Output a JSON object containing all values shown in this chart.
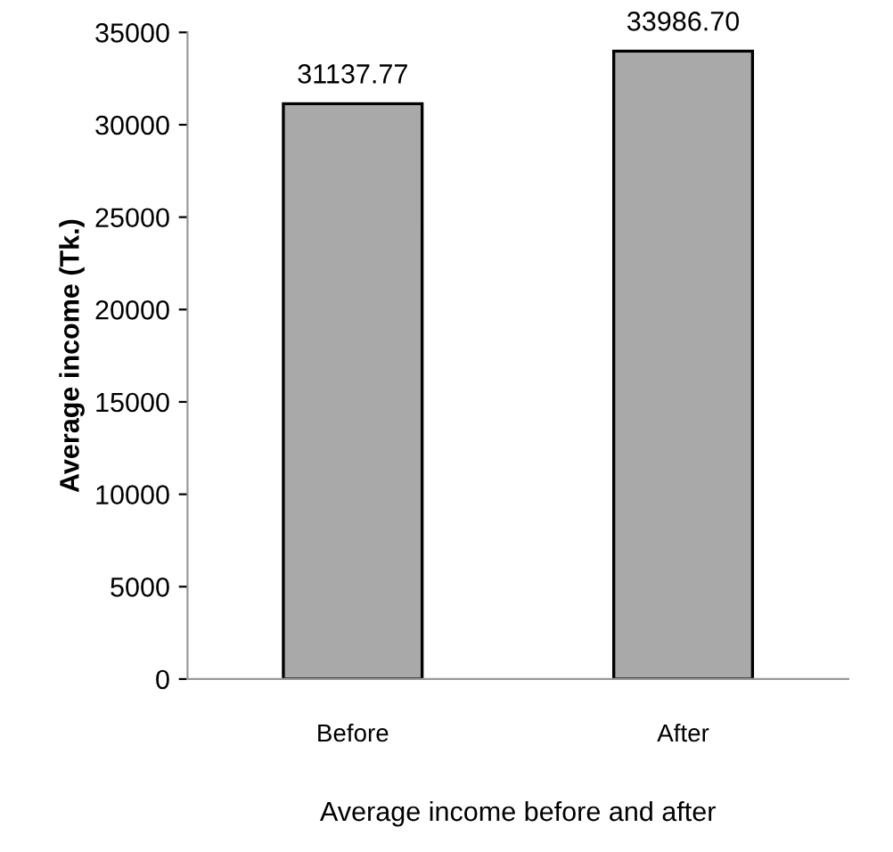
{
  "chart_data": {
    "type": "bar",
    "xlabel": "Average income before and after",
    "ylabel": "Average income (Tk.)",
    "categories": [
      "Before",
      "After"
    ],
    "values": [
      31137.77,
      33986.7
    ],
    "value_labels": [
      "31137.77",
      "33986.70"
    ],
    "color": "#a9a9a9",
    "ylim": [
      0,
      35000
    ],
    "yticks": [
      0,
      5000,
      10000,
      15000,
      20000,
      25000,
      30000,
      35000
    ],
    "grid": false,
    "legend": false
  }
}
